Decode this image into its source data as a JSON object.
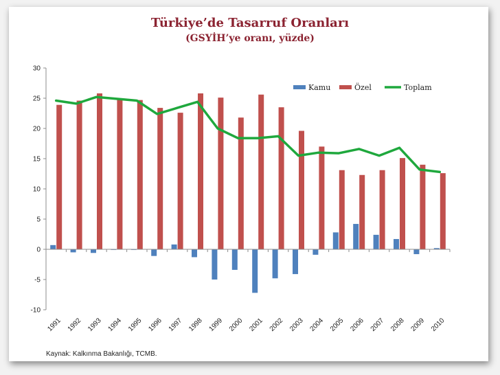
{
  "title": "Türkiye’de Tasarruf Oranları",
  "subtitle": "(GSYİH’ye oranı, yüzde)",
  "source": "Kaynak: Kalkınma Bakanlığı, TCMB.",
  "colors": {
    "kamu": "#4f81bd",
    "ozel": "#c0504d",
    "toplam": "#1fa83d",
    "title": "#8b2331"
  },
  "chart_data": {
    "type": "bar",
    "title": "Türkiye’de Tasarruf Oranları",
    "subtitle": "(GSYİH’ye oranı, yüzde)",
    "xlabel": "",
    "ylabel": "",
    "ylim": [
      -10,
      30
    ],
    "yticks": [
      -10,
      -5,
      0,
      5,
      10,
      15,
      20,
      25,
      30
    ],
    "grid": false,
    "legend": "top-right",
    "categories": [
      "1991",
      "1992",
      "1993",
      "1994",
      "1995",
      "1996",
      "1997",
      "1998",
      "1999",
      "2000",
      "2001",
      "2002",
      "2003",
      "2004",
      "2005",
      "2006",
      "2007",
      "2008",
      "2009",
      "2010"
    ],
    "series": [
      {
        "name": "Kamu",
        "type": "bar",
        "values": [
          0.7,
          -0.5,
          -0.6,
          -0.1,
          -0.1,
          -1.1,
          0.8,
          -1.3,
          -5.0,
          -3.4,
          -7.2,
          -4.8,
          -4.1,
          -0.9,
          2.8,
          4.2,
          2.4,
          1.7,
          -0.8,
          0.2
        ]
      },
      {
        "name": "Özel",
        "type": "bar",
        "values": [
          23.9,
          24.6,
          25.8,
          24.9,
          24.7,
          23.4,
          22.6,
          25.8,
          25.1,
          21.8,
          25.6,
          23.5,
          19.6,
          17.0,
          13.1,
          12.3,
          13.1,
          15.1,
          14.0,
          12.6
        ]
      },
      {
        "name": "Toplam",
        "type": "line",
        "values": [
          24.6,
          24.1,
          25.2,
          24.9,
          24.6,
          22.4,
          23.4,
          24.4,
          20.0,
          18.4,
          18.4,
          18.7,
          15.5,
          16.0,
          15.9,
          16.6,
          15.5,
          16.8,
          13.2,
          12.8
        ]
      }
    ]
  }
}
